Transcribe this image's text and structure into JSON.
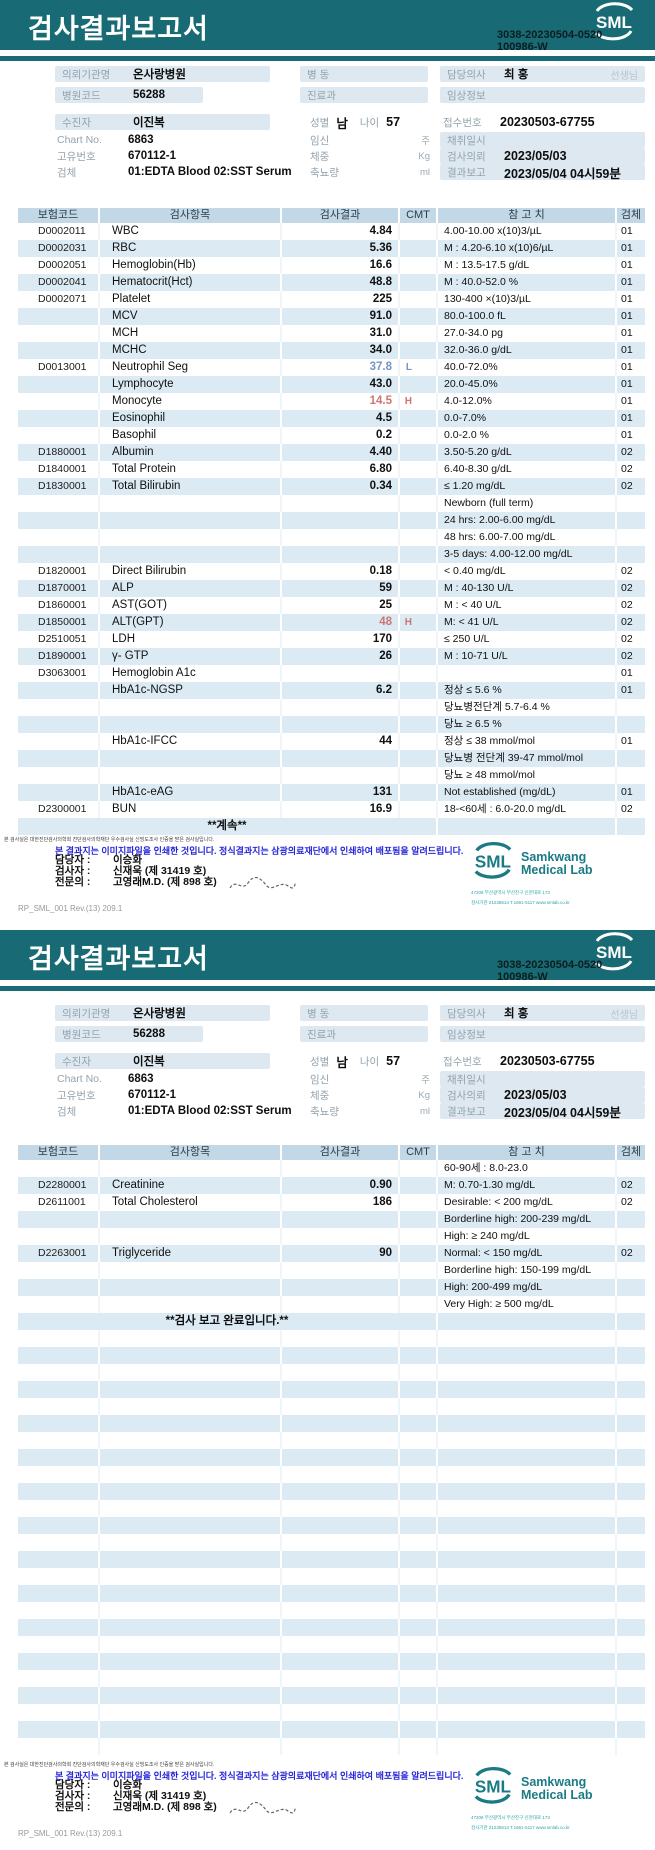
{
  "banner": {
    "title": "검사결과보고서",
    "serial_line1": "3038-20230504-0520",
    "serial_line2": "100986-W",
    "logo_text": "SML"
  },
  "info": {
    "request_org_label": "의뢰기관명",
    "request_org": "온사랑병원",
    "hospital_code_label": "병원코드",
    "hospital_code": "56288",
    "ward_label": "병  동",
    "dept_label": "진료과",
    "doctor_label": "담당의사",
    "doctor": "최 홍",
    "doctor_suffix": "선생님",
    "clinical_label": "임상정보",
    "patient_label": "수진자",
    "patient": "이진복",
    "chart_label": "Chart No.",
    "chart": "6863",
    "uid_label": "고유번호",
    "uid": "670112-1",
    "specimen_label": "검체",
    "specimen": "01:EDTA Blood 02:SST Serum",
    "sex_label": "성별",
    "sex": "남",
    "age_label": "나이",
    "age": "57",
    "pregnancy_label": "임신",
    "pregnancy_unit": "주",
    "weight_label": "체중",
    "weight_unit": "Kg",
    "urine_label": "축뇨량",
    "urine_unit": "ml",
    "receipt_label": "접수번호",
    "receipt": "20230503-67755",
    "collect_label": "채취일시",
    "order_label": "검사의뢰",
    "order_date": "2023/05/03",
    "report_label": "결과보고",
    "report_date": "2023/05/04 04시59분"
  },
  "table": {
    "headers": [
      "보험코드",
      "검사항목",
      "검사결과",
      "CMT",
      "참 고 치",
      "검체"
    ],
    "pages": [
      {
        "filler_rows": 0,
        "rows": [
          {
            "code": "D0002011",
            "item": "WBC",
            "result": "4.84",
            "ref": "4.00-10.00 x(10)3/µL",
            "spec": "01"
          },
          {
            "code": "D0002031",
            "item": "RBC",
            "result": "5.36",
            "ref": "M : 4.20-6.10 x(10)6/µL",
            "spec": "01"
          },
          {
            "code": "D0002051",
            "item": "Hemoglobin(Hb)",
            "result": "16.6",
            "ref": "M : 13.5-17.5 g/dL",
            "spec": "01"
          },
          {
            "code": "D0002041",
            "item": "Hematocrit(Hct)",
            "result": "48.8",
            "ref": "M : 40.0-52.0 %",
            "spec": "01"
          },
          {
            "code": "D0002071",
            "item": "Platelet",
            "result": "225",
            "ref": "130-400 ×(10)3/µL",
            "spec": "01"
          },
          {
            "item": "MCV",
            "result": "91.0",
            "ref": "80.0-100.0 fL",
            "spec": "01"
          },
          {
            "item": "MCH",
            "result": "31.0",
            "ref": "27.0-34.0 pg",
            "spec": "01"
          },
          {
            "item": "MCHC",
            "result": "34.0",
            "ref": "32.0-36.0 g/dL",
            "spec": "01"
          },
          {
            "code": "D0013001",
            "item": "Neutrophil Seg",
            "result": "37.8",
            "flag": "L",
            "ref": "40.0-72.0%",
            "spec": "01"
          },
          {
            "item": "Lymphocyte",
            "result": "43.0",
            "ref": "20.0-45.0%",
            "spec": "01"
          },
          {
            "item": "Monocyte",
            "result": "14.5",
            "flag": "H",
            "ref": "4.0-12.0%",
            "spec": "01"
          },
          {
            "item": "Eosinophil",
            "result": "4.5",
            "ref": "0.0-7.0%",
            "spec": "01"
          },
          {
            "item": "Basophil",
            "result": "0.2",
            "ref": "0.0-2.0 %",
            "spec": "01"
          },
          {
            "code": "D1880001",
            "item": "Albumin",
            "result": "4.40",
            "ref": "3.50-5.20 g/dL",
            "spec": "02"
          },
          {
            "code": "D1840001",
            "item": "Total Protein",
            "result": "6.80",
            "ref": "6.40-8.30 g/dL",
            "spec": "02"
          },
          {
            "code": "D1830001",
            "item": "Total Bilirubin",
            "result": "0.34",
            "ref": "≤ 1.20 mg/dL",
            "spec": "02"
          },
          {
            "ref": "Newborn (full term)"
          },
          {
            "ref": "24 hrs: 2.00-6.00 mg/dL"
          },
          {
            "ref": "48 hrs: 6.00-7.00 mg/dL"
          },
          {
            "ref": "3-5 days: 4.00-12.00 mg/dL"
          },
          {
            "code": "D1820001",
            "item": "Direct Bilirubin",
            "result": "0.18",
            "ref": "< 0.40 mg/dL",
            "spec": "02"
          },
          {
            "code": "D1870001",
            "item": "ALP",
            "result": "59",
            "ref": "M : 40-130 U/L",
            "spec": "02"
          },
          {
            "code": "D1860001",
            "item": "AST(GOT)",
            "result": "25",
            "ref": "M : < 40 U/L",
            "spec": "02"
          },
          {
            "code": "D1850001",
            "item": "ALT(GPT)",
            "result": "48",
            "flag": "H",
            "ref": "M: < 41 U/L",
            "spec": "02"
          },
          {
            "code": "D2510051",
            "item": "LDH",
            "result": "170",
            "ref": "≤ 250 U/L",
            "spec": "02"
          },
          {
            "code": "D1890001",
            "item": "γ- GTP",
            "result": "26",
            "ref": "M : 10-71 U/L",
            "spec": "02"
          },
          {
            "code": "D3063001",
            "item": "Hemoglobin A1c",
            "spec": "01"
          },
          {
            "item": "HbA1c-NGSP",
            "result": "6.2",
            "ref": "정상 ≤ 5.6 %",
            "spec": "01"
          },
          {
            "ref": "당뇨병전단계 5.7-6.4 %"
          },
          {
            "ref": "당뇨 ≥ 6.5 %"
          },
          {
            "item": "HbA1c-IFCC",
            "result": "44",
            "ref": "정상 ≤ 38 mmol/mol",
            "spec": "01"
          },
          {
            "ref": "당뇨병 전단계 39-47 mmol/mol"
          },
          {
            "ref": "당뇨 ≥ 48 mmol/mol"
          },
          {
            "item": "HbA1c-eAG",
            "result": "131",
            "ref": "Not established (mg/dL)",
            "spec": "01"
          },
          {
            "code": "D2300001",
            "item": "BUN",
            "result": "16.9",
            "ref": "18-<60세 : 6.0-20.0 mg/dL",
            "spec": "02"
          },
          {
            "center": "**계속**"
          }
        ]
      },
      {
        "filler_rows": 25,
        "rows": [
          {
            "ref": "60-90세 : 8.0-23.0"
          },
          {
            "code": "D2280001",
            "item": "Creatinine",
            "result": "0.90",
            "ref": "M: 0.70-1.30 mg/dL",
            "spec": "02"
          },
          {
            "code": "D2611001",
            "item": "Total Cholesterol",
            "result": "186",
            "ref": "Desirable: < 200 mg/dL",
            "spec": "02"
          },
          {
            "ref": "Borderline high: 200-239 mg/dL"
          },
          {
            "ref": "High: ≥ 240 mg/dL"
          },
          {
            "code": "D2263001",
            "item": "Triglyceride",
            "result": "90",
            "ref": "Normal: < 150 mg/dL",
            "spec": "02"
          },
          {
            "ref": "Borderline high: 150-199 mg/dL"
          },
          {
            "ref": "High: 200-499 mg/dL"
          },
          {
            "ref": "Very High: ≥ 500 mg/dL"
          },
          {
            "center": "**검사  보고  완료입니다.**"
          }
        ]
      }
    ]
  },
  "footer": {
    "certification": "본 검사실은 대한진단검사의학회 진단검사의학재단 우수검사실 신빙도조사 인증을 받은 검사실입니다.",
    "notice": "본 결과지는 이미지파일을 인쇄한 것입니다. 정식결과지는 삼광의료재단에서 인쇄하여 배포됨을 알려드립니다.",
    "staff": [
      {
        "label": "담당자 :",
        "value": "이승화"
      },
      {
        "label": "검사자 :",
        "value": "신재욱 (제 31419 호)"
      },
      {
        "label": "전문의 :",
        "value": "고영래M.D. (제 898 호)"
      }
    ],
    "logo": {
      "mark": "SML",
      "name_line1": "Samkwang",
      "name_line2": "Medical Lab",
      "address": "47206 부산광역시 부산진구 신천대로 173",
      "contact": "검사기관 21235614 T.1661-5117 www.smlab.co.kr"
    },
    "doc_code": "RP_SML_001 Rev.(13) 209.1"
  },
  "colors": {
    "teal": "#186b74",
    "stripe": "#dceaf3",
    "header_bg": "#c2d8e6",
    "low_flag": "#7495c5",
    "high_flag": "#cd7671",
    "notice_blue": "#2626d8"
  }
}
